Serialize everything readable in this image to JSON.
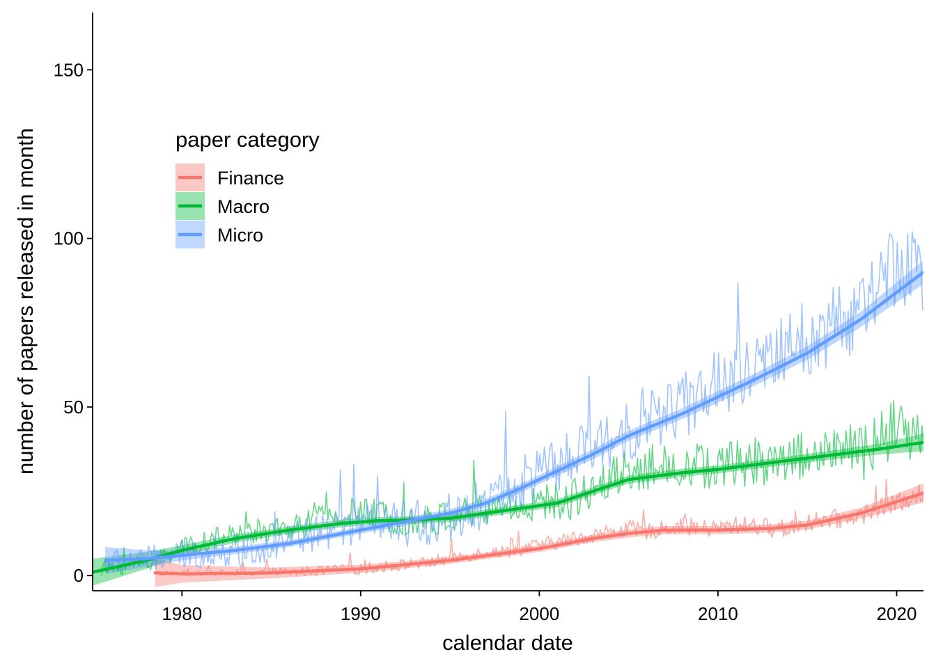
{
  "chart_data": {
    "type": "line",
    "xlabel": "calendar date",
    "ylabel": "number of papers released in month",
    "xlim": [
      1975.0,
      2021.5
    ],
    "ylim": [
      -4.5,
      167
    ],
    "x_ticks": [
      1980,
      1990,
      2000,
      2010,
      2020
    ],
    "y_ticks": [
      0,
      50,
      100,
      150
    ],
    "grid": false,
    "legend": {
      "title": "paper category",
      "placement": "upper-left-inside"
    },
    "series": [
      {
        "name": "Finance",
        "color": "#F8766D",
        "start": 1978.5,
        "smooth_x": [
          1978.5,
          1980,
          1985,
          1990,
          1995,
          2000,
          2003,
          2005,
          2007,
          2010,
          2013,
          2015,
          2018,
          2021.5
        ],
        "smooth_y": [
          0.8,
          0.5,
          0.8,
          2,
          4.5,
          8,
          11,
          12.5,
          13.5,
          13.5,
          14,
          15,
          18.5,
          24.5
        ],
        "band_halfwidth": [
          4.2,
          2.6,
          1.6,
          1.2,
          1.0,
          1.0,
          1.1,
          1.2,
          1.2,
          1.2,
          1.2,
          1.3,
          1.6,
          2.8
        ],
        "monthly_x": [
          1978.5,
          1980,
          1982,
          1984,
          1986,
          1988,
          1990,
          1992,
          1993,
          1994,
          1995,
          1996,
          1997,
          1998,
          1999,
          2000,
          2001,
          2002,
          2003,
          2004,
          2005,
          2006,
          2007,
          2008,
          2009,
          2010,
          2011,
          2012,
          2013,
          2014,
          2015,
          2016,
          2017,
          2018,
          2019,
          2020,
          2021
        ],
        "monthly_y": [
          0,
          0.5,
          0.5,
          1,
          1,
          1.5,
          2,
          3,
          3.5,
          4,
          5,
          6,
          7,
          7,
          8,
          9,
          10,
          11,
          12,
          13,
          14,
          13,
          14,
          15,
          14,
          14,
          15,
          15,
          14,
          14,
          16,
          16,
          17,
          18,
          20,
          21,
          24
        ],
        "monthly_spread": 5
      },
      {
        "name": "Macro",
        "color": "#00BA38",
        "start": 1975,
        "smooth_x": [
          1975,
          1978,
          1980,
          1983,
          1986,
          1989,
          1991,
          1993,
          1995,
          1997,
          1999,
          2001,
          2003,
          2005,
          2008,
          2010,
          2013,
          2016,
          2019,
          2021.5
        ],
        "smooth_y": [
          1,
          4.5,
          7.5,
          11,
          13.5,
          15.5,
          16.3,
          16.5,
          17,
          18.5,
          20,
          21.5,
          25,
          28.5,
          30.5,
          31.5,
          33.5,
          35.5,
          37.5,
          39.5
        ],
        "band_halfwidth": [
          4,
          2.5,
          1.5,
          1.2,
          1.1,
          1.1,
          1.1,
          1.1,
          1.1,
          1.1,
          1.1,
          1.2,
          1.2,
          1.2,
          1.2,
          1.2,
          1.2,
          1.3,
          1.6,
          2.6
        ],
        "monthly_x": [
          1976,
          1978,
          1980,
          1982,
          1984,
          1986,
          1988,
          1990,
          1992,
          1994,
          1996,
          1998,
          2000,
          2002,
          2004,
          2006,
          2008,
          2010,
          2012,
          2014,
          2016,
          2018,
          2020,
          2021
        ],
        "monthly_y": [
          2,
          4,
          8,
          11,
          13,
          14,
          17,
          19,
          17,
          16,
          19,
          20,
          21,
          23,
          30,
          32,
          33,
          32,
          34,
          35,
          37,
          36,
          44,
          40
        ],
        "monthly_spread": 14
      },
      {
        "name": "Micro",
        "color": "#619CFF",
        "start": 1975.7,
        "smooth_x": [
          1975.7,
          1978,
          1980,
          1983,
          1986,
          1989,
          1991,
          1993,
          1995,
          1997,
          1999,
          2001,
          2003,
          2005,
          2008,
          2010,
          2012,
          2015,
          2018,
          2021.5
        ],
        "smooth_y": [
          4.5,
          5,
          6,
          7.5,
          9.5,
          12.5,
          14.5,
          16.5,
          18.5,
          21.5,
          26,
          31,
          36,
          41.5,
          48,
          53,
          58,
          66,
          76,
          90
        ],
        "band_halfwidth": [
          4,
          2.5,
          1.5,
          1.1,
          1.0,
          1.0,
          1.1,
          1.2,
          1.2,
          1.3,
          1.3,
          1.4,
          1.5,
          1.5,
          1.6,
          1.7,
          1.8,
          2.0,
          2.3,
          3.5
        ],
        "monthly_x": [
          1976,
          1978,
          1980,
          1982,
          1984,
          1986,
          1988,
          1990,
          1992,
          1994,
          1996,
          1998,
          2000,
          2002,
          2004,
          2006,
          2008,
          2010,
          2012,
          2014,
          2016,
          2018,
          2020,
          2021
        ],
        "monthly_y": [
          4,
          5,
          6,
          7,
          8,
          11,
          13,
          15,
          15,
          16,
          19,
          25,
          30,
          35,
          40,
          47,
          50,
          57,
          60,
          68,
          73,
          78,
          92,
          90
        ],
        "monthly_spread": 20
      }
    ]
  }
}
